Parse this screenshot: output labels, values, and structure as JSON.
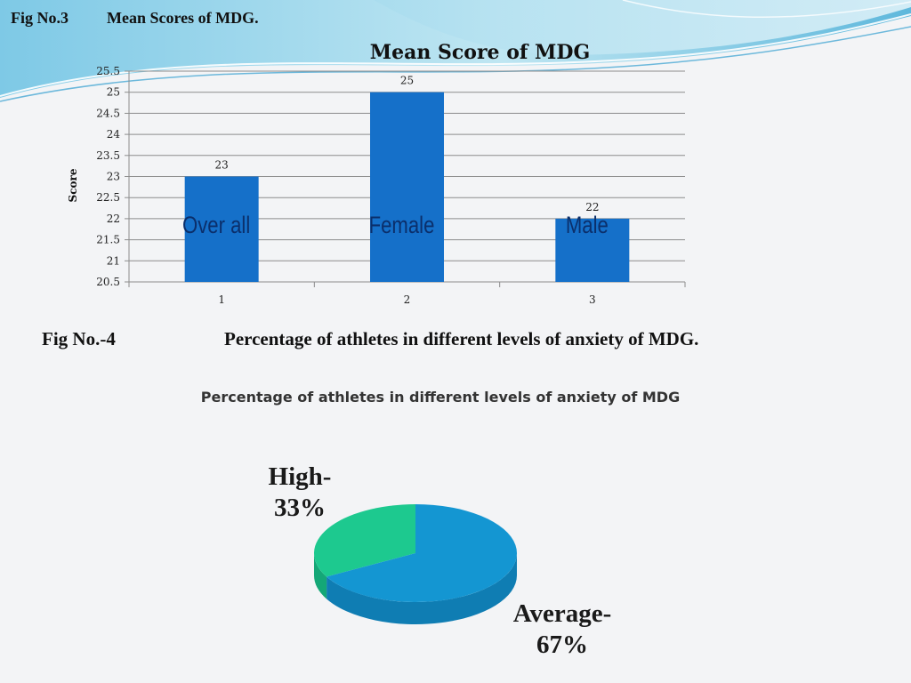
{
  "colors": {
    "bar": "#1570c9",
    "pie_average": "#1496d2",
    "pie_average_side": "#0f7db3",
    "pie_high": "#1dc98f",
    "pie_high_side": "#14a777",
    "grid": "#8c8c8c"
  },
  "fig3": {
    "number": "Fig No.3",
    "caption": "Mean Scores of MDG."
  },
  "fig4": {
    "number": "Fig No.-4",
    "caption": "Percentage of athletes in different levels of anxiety of MDG."
  },
  "chart_data": [
    {
      "type": "bar",
      "title": "Mean Score of MDG",
      "xlabel": "",
      "ylabel": "Score",
      "ylim": [
        20.5,
        25.5
      ],
      "yticks": [
        "20.5",
        "21",
        "21.5",
        "22",
        "22.5",
        "23",
        "23.5",
        "24",
        "24.5",
        "25",
        "25.5"
      ],
      "categories": [
        "1",
        "2",
        "3"
      ],
      "values": [
        23,
        25,
        22
      ],
      "data_labels": [
        "23",
        "25",
        "22"
      ],
      "bar_annotations": [
        "Over all",
        "Female",
        "Male"
      ],
      "grid": true,
      "legend": "none"
    },
    {
      "type": "pie",
      "title": "Percentage of athletes in different levels of anxiety of MDG",
      "style": "3d",
      "slices": [
        {
          "label": "High-",
          "value": 33,
          "value_label": "33%"
        },
        {
          "label": "Average-",
          "value": 67,
          "value_label": "67%"
        }
      ]
    }
  ]
}
